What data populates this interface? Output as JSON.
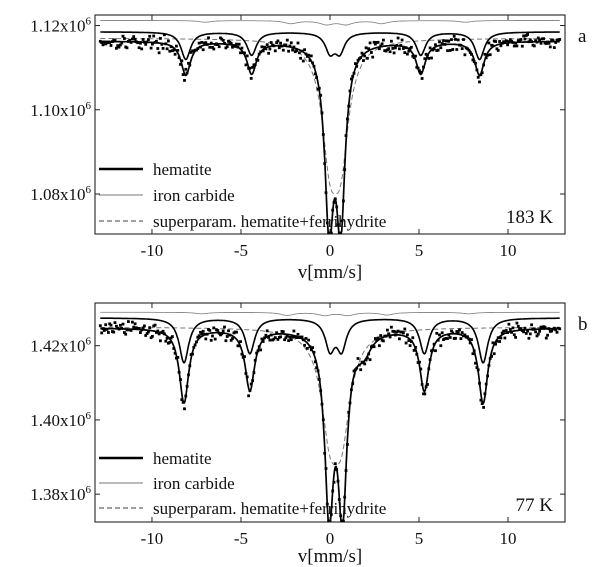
{
  "chart_data": [
    {
      "type": "line",
      "panel_label": "a",
      "annotation": "183 K",
      "xlabel": "v[mm/s]",
      "xlim": [
        -13.2,
        13.2
      ],
      "ylim": [
        1.0705,
        1.1225
      ],
      "y_scale_power": 6,
      "x_ticks": [
        {
          "value": -10,
          "label": "-10"
        },
        {
          "value": -5,
          "label": "-5"
        },
        {
          "value": 0,
          "label": "0"
        },
        {
          "value": 5,
          "label": "5"
        },
        {
          "value": 10,
          "label": "10"
        }
      ],
      "y_ticks": [
        {
          "value": 1.08,
          "label": "1.08x10",
          "exp": "6"
        },
        {
          "value": 1.1,
          "label": "1.10x10",
          "exp": "6"
        },
        {
          "value": 1.12,
          "label": "1.12x10",
          "exp": "6"
        }
      ],
      "grid": false,
      "legend_position": "bottom-left",
      "legend": [
        {
          "label": "hematite",
          "style": "thick-solid"
        },
        {
          "label": "iron carbide",
          "style": "thin-solid"
        },
        {
          "label": "superparam. hematite+ferrihydrite",
          "style": "dashed"
        }
      ],
      "components": {
        "hematite": {
          "baseline": 1.1185,
          "lines": [
            [
              -8.1,
              0.0065,
              0.32
            ],
            [
              -4.4,
              0.0055,
              0.32
            ],
            [
              0.0,
              0.0045,
              0.32
            ],
            [
              0.55,
              0.0045,
              0.32
            ],
            [
              5.1,
              0.0055,
              0.32
            ],
            [
              8.4,
              0.0065,
              0.32
            ]
          ]
        },
        "iron_carbide": {
          "baseline": 1.1212,
          "lines": [
            [
              -2.2,
              0.0007,
              0.45
            ],
            [
              -0.2,
              0.0009,
              0.45
            ],
            [
              0.9,
              0.0009,
              0.45
            ],
            [
              2.9,
              0.0007,
              0.45
            ],
            [
              7.6,
              0.0004,
              0.45
            ],
            [
              -7.0,
              0.0004,
              0.45
            ]
          ]
        },
        "superparam": {
          "baseline": 1.117,
          "lines": [
            [
              0.0,
              0.024,
              0.55
            ],
            [
              0.6,
              0.024,
              0.55
            ]
          ]
        }
      },
      "total_fit": {
        "baseline": 1.1163,
        "lines": [
          [
            -8.1,
            0.008,
            0.32
          ],
          [
            -4.4,
            0.0075,
            0.32
          ],
          [
            -0.05,
            0.0405,
            0.3
          ],
          [
            0.6,
            0.0405,
            0.3
          ],
          [
            5.1,
            0.0075,
            0.32
          ],
          [
            8.4,
            0.008,
            0.32
          ]
        ]
      },
      "data_points": {
        "noise": 0.00085,
        "step": 0.075
      }
    },
    {
      "type": "line",
      "panel_label": "b",
      "annotation": "77 K",
      "xlabel": "v[mm/s]",
      "xlim": [
        -13.2,
        13.2
      ],
      "ylim": [
        1.3725,
        1.4315
      ],
      "y_scale_power": 6,
      "x_ticks": [
        {
          "value": -10,
          "label": "-10"
        },
        {
          "value": -5,
          "label": "-5"
        },
        {
          "value": 0,
          "label": "0"
        },
        {
          "value": 5,
          "label": "5"
        },
        {
          "value": 10,
          "label": "10"
        }
      ],
      "y_ticks": [
        {
          "value": 1.38,
          "label": "1.38x10",
          "exp": "6"
        },
        {
          "value": 1.4,
          "label": "1.40x10",
          "exp": "6"
        },
        {
          "value": 1.42,
          "label": "1.42x10",
          "exp": "6"
        }
      ],
      "grid": false,
      "legend_position": "bottom-left",
      "legend": [
        {
          "label": "hematite",
          "style": "thick-solid"
        },
        {
          "label": "iron carbide",
          "style": "thin-solid"
        },
        {
          "label": "superparam. hematite+ferrihydrite",
          "style": "dashed"
        }
      ],
      "components": {
        "hematite": {
          "baseline": 1.4275,
          "lines": [
            [
              -8.2,
              0.012,
              0.32
            ],
            [
              -4.5,
              0.0095,
              0.32
            ],
            [
              0.0,
              0.008,
              0.32
            ],
            [
              0.65,
              0.008,
              0.32
            ],
            [
              5.3,
              0.0095,
              0.32
            ],
            [
              8.6,
              0.012,
              0.32
            ]
          ]
        },
        "iron_carbide": {
          "baseline": 1.429,
          "lines": [
            [
              -2.4,
              0.0008,
              0.45
            ],
            [
              -0.3,
              0.0008,
              0.45
            ],
            [
              1.0,
              0.0008,
              0.45
            ],
            [
              3.2,
              0.0007,
              0.45
            ],
            [
              7.8,
              0.0004,
              0.45
            ],
            [
              -7.2,
              0.0004,
              0.45
            ]
          ]
        },
        "superparam": {
          "baseline": 1.425,
          "lines": [
            [
              0.0,
              0.024,
              0.6
            ],
            [
              0.65,
              0.024,
              0.6
            ]
          ]
        }
      },
      "total_fit": {
        "baseline": 1.4248,
        "lines": [
          [
            -8.2,
            0.02,
            0.32
          ],
          [
            -4.5,
            0.0165,
            0.32
          ],
          [
            -0.05,
            0.047,
            0.3
          ],
          [
            0.7,
            0.047,
            0.3
          ],
          [
            5.3,
            0.0165,
            0.32
          ],
          [
            8.6,
            0.02,
            0.32
          ],
          [
            1.9,
            0.005,
            0.5
          ]
        ]
      },
      "data_points": {
        "noise": 0.001,
        "step": 0.075
      }
    }
  ]
}
